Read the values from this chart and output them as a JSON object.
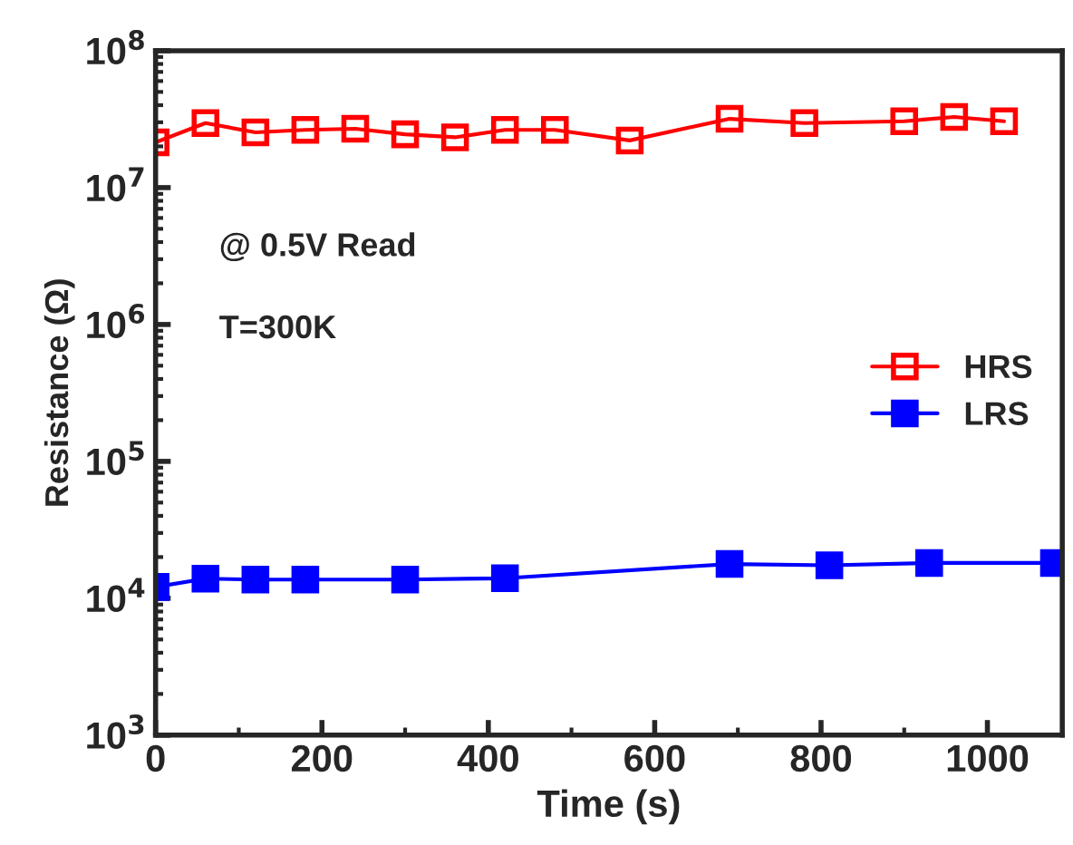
{
  "chart_data": {
    "type": "line",
    "xlabel": "Time (s)",
    "ylabel": "Resistance (Ω)",
    "log": "y",
    "xlim": [
      0,
      1090
    ],
    "xticks": [
      0,
      200,
      400,
      600,
      800,
      1000
    ],
    "ylim": [
      1000,
      100000000
    ],
    "yticks": [
      {
        "value": 1000,
        "label": "10$^{3}$"
      },
      {
        "value": 10000,
        "label": "10$^{4}$"
      },
      {
        "value": 100000,
        "label": "10$^{5}$"
      },
      {
        "value": 1000000,
        "label": "10$^{6}$"
      },
      {
        "value": 10000000,
        "label": "10$^{7}$"
      },
      {
        "value": 100000000,
        "label": "10$^{8}$"
      }
    ],
    "grid": false,
    "legend": "right",
    "marker": "square",
    "line_style": "solid",
    "annotations": [
      "@ 0.5V Read",
      "T=300K"
    ],
    "series": [
      {
        "name": "HRS",
        "color": "#ff0000",
        "x": [
          0,
          60,
          120,
          180,
          240,
          300,
          360,
          420,
          480,
          570,
          690,
          780,
          900,
          960,
          1020
        ],
        "values": [
          21400000,
          29600000,
          25300000,
          26400000,
          26900000,
          24500000,
          23300000,
          26400000,
          26400000,
          22100000,
          31800000,
          29600000,
          30500000,
          32800000,
          30500000
        ]
      },
      {
        "name": "LRS",
        "color": "#0000ff",
        "x": [
          0,
          60,
          120,
          180,
          300,
          420,
          690,
          810,
          930,
          1080
        ],
        "values": [
          12100,
          13900,
          13700,
          13700,
          13700,
          14000,
          17800,
          17400,
          18100,
          18100
        ]
      }
    ]
  }
}
